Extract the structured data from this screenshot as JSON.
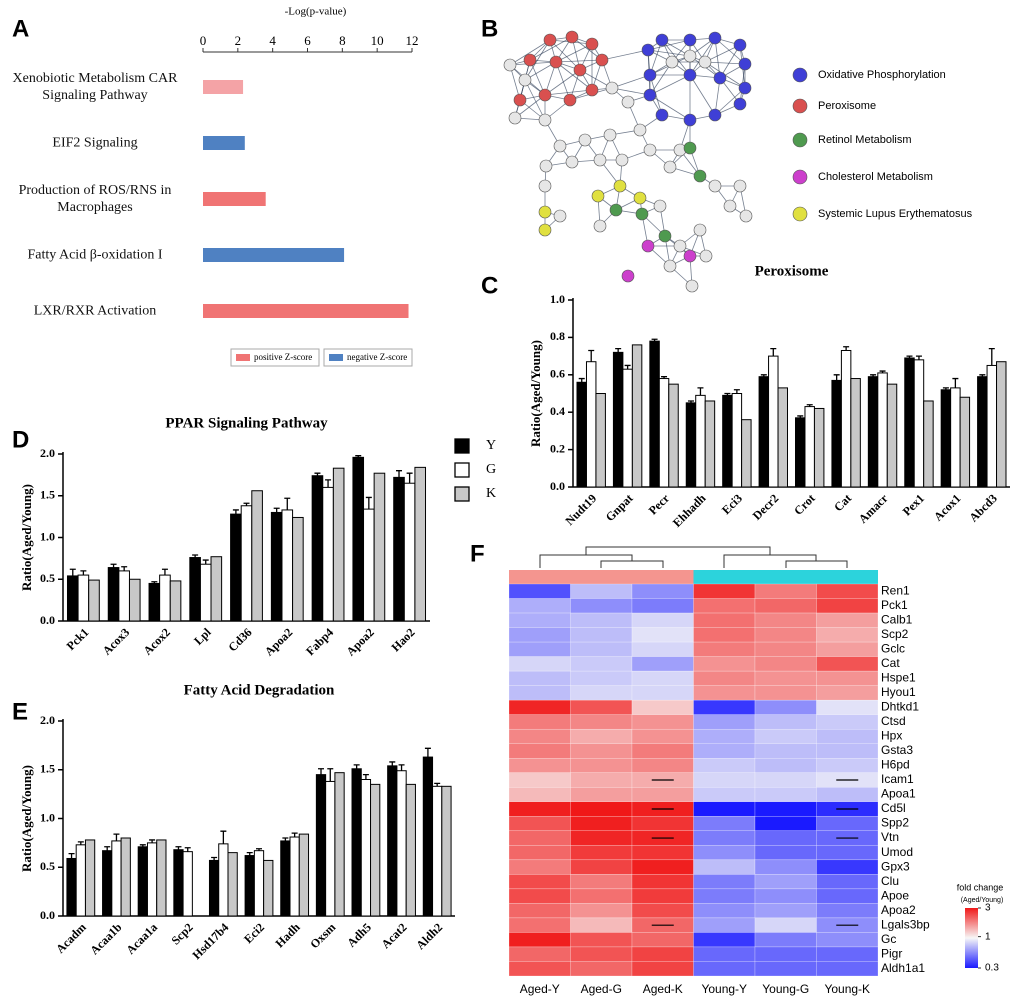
{
  "chart_data": [
    {
      "type": "hbar",
      "panel": "A",
      "x_label": "-Log(p-value)",
      "categories": [
        "Xenobiotic Metabolism CAR Signaling Pathway",
        "EIF2 Signaling",
        "Production of ROS/RNS in Macrophages",
        "Fatty Acid β-oxidation I",
        "LXR/RXR Activation"
      ],
      "values": [
        2.3,
        2.4,
        3.6,
        8.1,
        11.8
      ],
      "colors": [
        "#f4a3a6",
        "#4f81c2",
        "#f07474",
        "#4f81c2",
        "#f07474"
      ],
      "xlim": [
        0,
        12
      ],
      "xticks": [
        0,
        2,
        4,
        6,
        8,
        10,
        12
      ],
      "legend": [
        {
          "name": "positive Z-score",
          "color": "#f07474"
        },
        {
          "name": "negative Z-score",
          "color": "#4f81c2"
        }
      ]
    },
    {
      "type": "network",
      "panel": "B",
      "legend": [
        {
          "name": "Oxidative Phosphorylation",
          "color": "#3f3fd6"
        },
        {
          "name": "Peroxisome",
          "color": "#d9504f"
        },
        {
          "name": "Retinol Metabolism",
          "color": "#4f9a4f"
        },
        {
          "name": "Cholesterol Metabolism",
          "color": "#cc3fcc"
        },
        {
          "name": "Systemic Lupus Erythematosus",
          "color": "#e0e040"
        }
      ]
    },
    {
      "type": "grouped_bar",
      "panel": "C",
      "title": "Peroxisome",
      "y_label": "Ratio(Aged/Young)",
      "categories": [
        "Nudt19",
        "Gnpat",
        "Pecr",
        "Ehhadh",
        "Eci3",
        "Decr2",
        "Crot",
        "Cat",
        "Amacr",
        "Pex1",
        "Acox1",
        "Abcd3"
      ],
      "series": [
        {
          "color": "#000000",
          "values": [
            0.56,
            0.72,
            0.78,
            0.45,
            0.49,
            0.59,
            0.37,
            0.57,
            0.59,
            0.69,
            0.52,
            0.59
          ],
          "errors": [
            0.02,
            0.02,
            0.01,
            0.01,
            0.01,
            0.01,
            0.01,
            0.03,
            0.01,
            0.01,
            0.01,
            0.01
          ]
        },
        {
          "color": "#ffffff",
          "values": [
            0.67,
            0.63,
            0.58,
            0.49,
            0.5,
            0.7,
            0.43,
            0.73,
            0.61,
            0.68,
            0.53,
            0.65
          ],
          "errors": [
            0.06,
            0.02,
            0.01,
            0.04,
            0.02,
            0.04,
            0.01,
            0.02,
            0.01,
            0.02,
            0.05,
            0.09
          ]
        },
        {
          "color": "#c8c8c8",
          "values": [
            0.5,
            0.76,
            0.55,
            0.46,
            0.36,
            0.53,
            0.42,
            0.58,
            0.55,
            0.46,
            0.48,
            0.67
          ]
        }
      ],
      "ylim": [
        0,
        1
      ],
      "yticks": [
        {
          "value": 0,
          "label": "0.0"
        },
        0.2,
        0.4,
        0.6,
        0.8,
        {
          "value": 1,
          "label": "1.0"
        }
      ]
    },
    {
      "type": "grouped_bar",
      "panel": "D",
      "title": "PPAR Signaling Pathway",
      "y_label": "Ratio(Aged/Young)",
      "categories": [
        "Pck1",
        "Acox3",
        "Acox2",
        "Lpl",
        "Cd36",
        "Apoa2",
        "Fabp4",
        "Apoa2",
        "Hao2"
      ],
      "series": [
        {
          "name": "Y",
          "color": "#000000",
          "values": [
            0.54,
            0.64,
            0.45,
            0.76,
            1.28,
            1.3,
            1.74,
            1.96,
            1.72
          ],
          "errors": [
            0.08,
            0.04,
            0.02,
            0.03,
            0.05,
            0.05,
            0.03,
            0.02,
            0.08
          ]
        },
        {
          "name": "G",
          "color": "#ffffff",
          "values": [
            0.55,
            0.6,
            0.55,
            0.68,
            1.38,
            1.33,
            1.6,
            1.34,
            1.65
          ],
          "errors": [
            0.05,
            0.05,
            0.07,
            0.05,
            0.03,
            0.14,
            0.09,
            0.14,
            0.12
          ]
        },
        {
          "name": "K",
          "color": "#c8c8c8",
          "values": [
            0.49,
            0.5,
            0.48,
            0.77,
            1.56,
            1.24,
            1.83,
            1.77,
            1.84
          ]
        }
      ],
      "ylim": [
        0,
        2
      ],
      "yticks": [
        {
          "value": 0,
          "label": "0.0"
        },
        0.5,
        {
          "value": 1,
          "label": "1.0"
        },
        1.5,
        {
          "value": 2,
          "label": "2.0"
        }
      ]
    },
    {
      "type": "grouped_bar",
      "panel": "E",
      "title": "Fatty Acid Degradation",
      "y_label": "Ratio(Aged/Young)",
      "categories": [
        "Acadm",
        "Acaa1b",
        "Acaa1a",
        "Scp2",
        "Hsd17b4",
        "Eci2",
        "Hadh",
        "Oxsm",
        "Adh5",
        "Acat2",
        "Aldh2"
      ],
      "series": [
        {
          "color": "#000000",
          "values": [
            0.59,
            0.67,
            0.71,
            0.68,
            0.57,
            0.62,
            0.77,
            1.45,
            1.51,
            1.54,
            1.63
          ],
          "errors": [
            0.05,
            0.04,
            0.02,
            0.03,
            0.03,
            0.03,
            0.03,
            0.06,
            0.04,
            0.04,
            0.09
          ]
        },
        {
          "color": "#ffffff",
          "values": [
            0.73,
            0.77,
            0.75,
            0.66,
            0.74,
            0.67,
            0.81,
            1.38,
            1.4,
            1.49,
            1.33
          ],
          "errors": [
            0.03,
            0.07,
            0.03,
            0.04,
            0.13,
            0.02,
            0.04,
            0.13,
            0.05,
            0.06,
            0.03
          ]
        },
        {
          "color": "#c8c8c8",
          "values": [
            0.78,
            0.8,
            0.78,
            null,
            0.65,
            0.57,
            0.84,
            1.47,
            1.35,
            1.35,
            1.33
          ]
        }
      ],
      "ylim": [
        0,
        2
      ],
      "yticks": [
        {
          "value": 0,
          "label": "0.0"
        },
        0.5,
        {
          "value": 1,
          "label": "1.0"
        },
        1.5,
        {
          "value": 2,
          "label": "2.0"
        }
      ]
    },
    {
      "type": "heatmap",
      "panel": "F",
      "columns": [
        "Aged-Y",
        "Aged-G",
        "Aged-K",
        "Young-Y",
        "Young-G",
        "Young-K"
      ],
      "group_colors": [
        "#f4958f",
        "#f4958f",
        "#f4958f",
        "#2cd3dc",
        "#2cd3dc",
        "#2cd3dc"
      ],
      "rows": [
        "Ren1",
        "Pck1",
        "Calb1",
        "Scp2",
        "Gclc",
        "Cat",
        "Hspe1",
        "Hyou1",
        "Dhtkd1",
        "Ctsd",
        "Hpx",
        "Gsta3",
        "H6pd",
        "Icam1",
        "Apoa1",
        "Cd5l",
        "Spp2",
        "Vtn",
        "Umod",
        "Gpx3",
        "Clu",
        "Apoe",
        "Apoa2",
        "Lgals3bp",
        "Gc",
        "Pigr",
        "Aldh1a1"
      ],
      "values": [
        [
          0.4,
          0.7,
          0.55,
          2.6,
          1.8,
          2.3
        ],
        [
          0.65,
          0.55,
          0.5,
          1.9,
          2.0,
          2.4
        ],
        [
          0.65,
          0.7,
          0.8,
          1.9,
          1.7,
          1.5
        ],
        [
          0.6,
          0.7,
          0.85,
          1.9,
          1.7,
          1.4
        ],
        [
          0.6,
          0.7,
          0.8,
          1.8,
          1.7,
          1.5
        ],
        [
          0.8,
          0.75,
          0.6,
          1.6,
          1.7,
          2.2
        ],
        [
          0.7,
          0.75,
          0.8,
          1.7,
          1.6,
          1.6
        ],
        [
          0.7,
          0.8,
          0.8,
          1.6,
          1.6,
          1.5
        ],
        [
          2.8,
          2.2,
          1.2,
          0.35,
          0.55,
          0.85
        ],
        [
          1.8,
          1.7,
          1.6,
          0.6,
          0.7,
          0.75
        ],
        [
          1.7,
          1.4,
          1.6,
          0.65,
          0.75,
          0.7
        ],
        [
          1.8,
          1.6,
          1.8,
          0.65,
          0.7,
          0.7
        ],
        [
          1.6,
          1.6,
          1.7,
          0.75,
          0.7,
          0.75
        ],
        [
          1.2,
          1.4,
          1.4,
          0.8,
          0.8,
          0.85
        ],
        [
          1.3,
          1.5,
          1.5,
          0.75,
          0.75,
          0.7
        ],
        [
          2.9,
          3.0,
          2.9,
          0.3,
          0.3,
          0.33
        ],
        [
          2.2,
          2.9,
          2.6,
          0.5,
          0.3,
          0.45
        ],
        [
          2.0,
          2.8,
          2.8,
          0.5,
          0.45,
          0.45
        ],
        [
          2.0,
          2.5,
          2.6,
          0.55,
          0.45,
          0.45
        ],
        [
          1.8,
          2.4,
          2.9,
          0.7,
          0.55,
          0.35
        ],
        [
          2.3,
          1.8,
          2.6,
          0.5,
          0.6,
          0.45
        ],
        [
          2.3,
          1.9,
          2.5,
          0.5,
          0.55,
          0.45
        ],
        [
          2.0,
          1.6,
          2.3,
          0.55,
          0.6,
          0.5
        ],
        [
          1.9,
          1.3,
          2.0,
          0.6,
          0.8,
          0.55
        ],
        [
          2.9,
          2.2,
          2.0,
          0.35,
          0.5,
          0.55
        ],
        [
          2.0,
          2.2,
          2.4,
          0.45,
          0.45,
          0.45
        ],
        [
          2.2,
          2.0,
          2.4,
          0.45,
          0.45,
          0.45
        ]
      ],
      "dash_cells": [
        [
          13,
          2
        ],
        [
          13,
          5
        ],
        [
          15,
          2
        ],
        [
          15,
          5
        ],
        [
          17,
          2
        ],
        [
          17,
          5
        ],
        [
          23,
          2
        ],
        [
          23,
          5
        ]
      ],
      "colormap": [
        "#1a1aff",
        "#f7f7f7",
        "#f01818"
      ],
      "log_scale": true,
      "colorbar_title": "fold change",
      "colorbar_subtitle": "(Aged/Young)",
      "zlim": [
        0.3,
        3
      ],
      "zticks": [
        3,
        1,
        0.3
      ]
    }
  ]
}
